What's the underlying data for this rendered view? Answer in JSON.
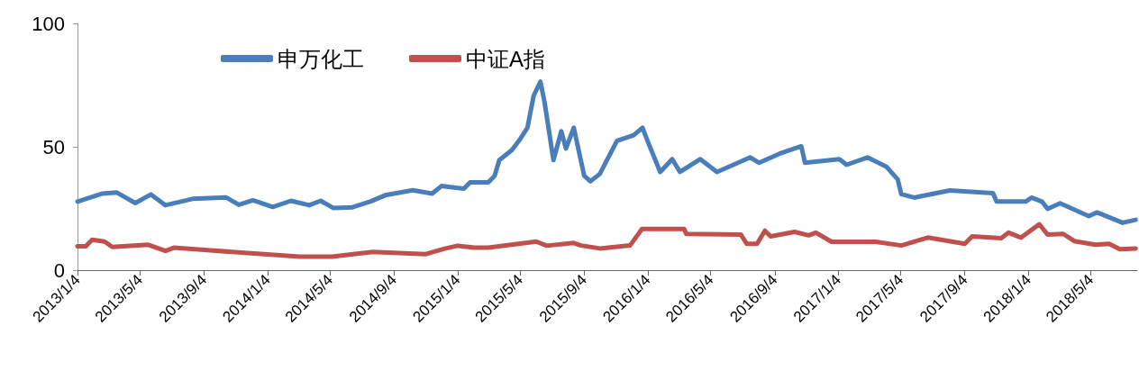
{
  "chart_data": {
    "type": "line",
    "legend": "top",
    "grid": false,
    "marker": "none",
    "line_style": "solid",
    "ylim": [
      0,
      100
    ],
    "yticks": [
      0,
      50,
      100
    ],
    "xlim": [
      "2013-01-04",
      "2018-08-01"
    ],
    "xticks": [
      {
        "value": "2013-01-04",
        "label": "2013/1/4"
      },
      {
        "value": "2013-05-04",
        "label": "2013/5/4"
      },
      {
        "value": "2013-09-04",
        "label": "2013/9/4"
      },
      {
        "value": "2014-01-04",
        "label": "2014/1/4"
      },
      {
        "value": "2014-05-04",
        "label": "2014/5/4"
      },
      {
        "value": "2014-09-04",
        "label": "2014/9/4"
      },
      {
        "value": "2015-01-04",
        "label": "2015/1/4"
      },
      {
        "value": "2015-05-04",
        "label": "2015/5/4"
      },
      {
        "value": "2015-09-04",
        "label": "2015/9/4"
      },
      {
        "value": "2016-01-04",
        "label": "2016/1/4"
      },
      {
        "value": "2016-05-04",
        "label": "2016/5/4"
      },
      {
        "value": "2016-09-04",
        "label": "2016/9/4"
      },
      {
        "value": "2017-01-04",
        "label": "2017/1/4"
      },
      {
        "value": "2017-05-04",
        "label": "2017/5/4"
      },
      {
        "value": "2017-09-04",
        "label": "2017/9/4"
      },
      {
        "value": "2018-01-04",
        "label": "2018/1/4"
      },
      {
        "value": "2018-05-04",
        "label": "2018/5/4"
      }
    ],
    "series": [
      {
        "name": "申万化工",
        "color": "#4a7ebb",
        "x": [
          "2013-01-04",
          "2013-02-20",
          "2013-03-20",
          "2013-04-25",
          "2013-05-25",
          "2013-06-22",
          "2013-08-13",
          "2013-10-16",
          "2013-11-10",
          "2013-12-07",
          "2014-01-14",
          "2014-02-18",
          "2014-03-25",
          "2014-04-16",
          "2014-05-10",
          "2014-06-16",
          "2014-07-20",
          "2014-08-20",
          "2014-10-10",
          "2014-11-16",
          "2014-12-04",
          "2015-01-16",
          "2015-01-28",
          "2015-03-04",
          "2015-03-16",
          "2015-03-25",
          "2015-04-18",
          "2015-05-04",
          "2015-05-18",
          "2015-05-30",
          "2015-06-12",
          "2015-06-20",
          "2015-07-07",
          "2015-07-22",
          "2015-07-31",
          "2015-08-15",
          "2015-09-04",
          "2015-09-16",
          "2015-10-04",
          "2015-11-06",
          "2015-12-08",
          "2015-12-25",
          "2016-01-05",
          "2016-01-28",
          "2016-02-20",
          "2016-03-06",
          "2016-04-14",
          "2016-05-16",
          "2016-07-19",
          "2016-08-05",
          "2016-09-13",
          "2016-10-25",
          "2016-11-01",
          "2017-01-06",
          "2017-01-20",
          "2017-03-01",
          "2017-04-06",
          "2017-04-28",
          "2017-05-05",
          "2017-05-30",
          "2017-08-06",
          "2017-10-28",
          "2017-11-04",
          "2017-12-30",
          "2018-01-10",
          "2018-01-30",
          "2018-02-10",
          "2018-03-06",
          "2018-04-30",
          "2018-05-16",
          "2018-07-04",
          "2018-07-29"
        ],
        "values": [
          27.8,
          31.0,
          31.5,
          27.2,
          30.7,
          26.3,
          28.9,
          29.5,
          26.5,
          28.3,
          25.6,
          28.1,
          26.3,
          28.1,
          25.2,
          25.5,
          27.8,
          30.5,
          32.4,
          31.0,
          34.1,
          33.0,
          35.6,
          35.6,
          38.2,
          44.6,
          48.6,
          53.1,
          57.7,
          70.7,
          76.4,
          68.0,
          44.6,
          56.3,
          49.3,
          57.7,
          38.3,
          36.0,
          39.0,
          52.4,
          54.7,
          57.7,
          51.7,
          39.8,
          45.0,
          39.8,
          45.0,
          39.8,
          45.7,
          43.5,
          47.2,
          50.2,
          43.5,
          45.0,
          42.7,
          45.7,
          42.0,
          36.8,
          30.8,
          29.4,
          32.3,
          31.2,
          27.8,
          27.8,
          29.4,
          27.8,
          24.8,
          27.1,
          21.9,
          23.4,
          19.2,
          20.4
        ]
      },
      {
        "name": "中证A指",
        "color": "#c0504d",
        "x": [
          "2013-01-04",
          "2013-01-20",
          "2013-02-01",
          "2013-02-25",
          "2013-03-12",
          "2013-05-20",
          "2013-06-22",
          "2013-07-08",
          "2013-09-10",
          "2013-12-28",
          "2014-03-07",
          "2014-05-08",
          "2014-07-25",
          "2014-11-04",
          "2014-12-10",
          "2015-01-04",
          "2015-02-05",
          "2015-03-04",
          "2015-06-04",
          "2015-06-24",
          "2015-08-15",
          "2015-08-29",
          "2015-10-04",
          "2015-12-01",
          "2015-12-24",
          "2016-03-14",
          "2016-03-18",
          "2016-07-01",
          "2016-07-12",
          "2016-08-01",
          "2016-08-16",
          "2016-08-27",
          "2016-10-12",
          "2016-11-08",
          "2016-11-22",
          "2016-12-22",
          "2017-03-17",
          "2017-05-05",
          "2017-06-25",
          "2017-09-04",
          "2017-09-18",
          "2017-11-13",
          "2017-11-27",
          "2017-12-21",
          "2018-01-25",
          "2018-02-10",
          "2018-03-12",
          "2018-04-02",
          "2018-05-13",
          "2018-06-08",
          "2018-06-29",
          "2018-07-29"
        ],
        "values": [
          9.7,
          9.7,
          12.3,
          11.6,
          9.4,
          10.3,
          7.8,
          9.1,
          8.1,
          6.5,
          5.5,
          5.5,
          7.4,
          6.5,
          8.7,
          9.9,
          9.1,
          9.1,
          11.6,
          9.9,
          11.0,
          10.0,
          8.8,
          10.0,
          16.7,
          16.7,
          14.7,
          14.4,
          10.7,
          10.7,
          16.0,
          13.7,
          15.5,
          14.1,
          15.2,
          11.5,
          11.5,
          10.0,
          13.2,
          10.7,
          13.7,
          13.0,
          15.2,
          13.2,
          18.6,
          14.4,
          14.7,
          11.8,
          10.3,
          10.7,
          8.5,
          8.8
        ]
      }
    ]
  }
}
